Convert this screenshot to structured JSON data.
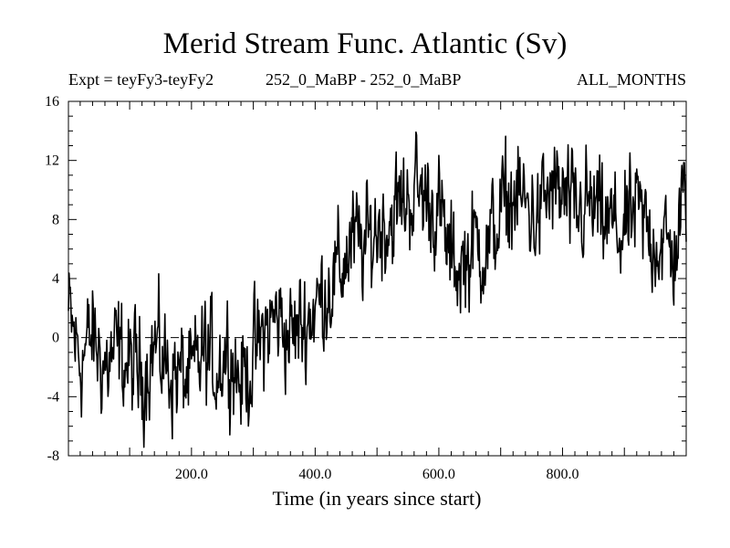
{
  "chart_data": {
    "type": "line",
    "title": "Merid Stream Func. Atlantic (Sv)",
    "subtitle_left": "Expt = teyFy3-teyFy2",
    "subtitle_center": "252_0_MaBP - 252_0_MaBP",
    "subtitle_right": "ALL_MONTHS",
    "xlabel": "Time (in years since start)",
    "ylabel": "",
    "xlim": [
      1,
      1000
    ],
    "ylim": [
      -8,
      16
    ],
    "x_ticks": [
      200,
      400,
      600,
      800
    ],
    "x_tick_labels": [
      "200.0",
      "400.0",
      "600.0",
      "800.0"
    ],
    "y_ticks": [
      -8,
      -4,
      0,
      4,
      8,
      12,
      16
    ],
    "y_tick_labels": [
      "-8",
      "-4",
      "0",
      "4",
      "8",
      "12",
      "16"
    ],
    "reference_line": {
      "y": 0,
      "style": "dashed"
    },
    "series": [
      {
        "name": "teyFy3-teyFy2",
        "x": [
          1,
          20,
          40,
          60,
          80,
          100,
          120,
          140,
          160,
          180,
          200,
          220,
          240,
          260,
          280,
          300,
          320,
          340,
          360,
          380,
          400,
          420,
          440,
          460,
          480,
          500,
          520,
          540,
          560,
          580,
          600,
          620,
          640,
          660,
          680,
          700,
          720,
          740,
          760,
          780,
          800,
          820,
          840,
          860,
          880,
          900,
          920,
          940,
          960,
          980,
          1000
        ],
        "values": [
          1.5,
          -1.5,
          0,
          -2,
          -1,
          -2,
          -2.5,
          -0.5,
          -2,
          -2.5,
          -3,
          -1,
          -2,
          -0.5,
          -3,
          -1.5,
          0.5,
          1.5,
          0,
          1,
          2,
          3.5,
          4.5,
          6.5,
          6,
          7.5,
          8,
          9,
          10,
          9.5,
          8.5,
          5,
          5,
          6.5,
          6,
          8.5,
          9.5,
          9,
          8,
          10,
          9.5,
          8,
          9,
          8,
          7.5,
          7,
          8.5,
          7,
          6.5,
          5.5,
          10
        ],
        "color": "#000000"
      }
    ]
  }
}
